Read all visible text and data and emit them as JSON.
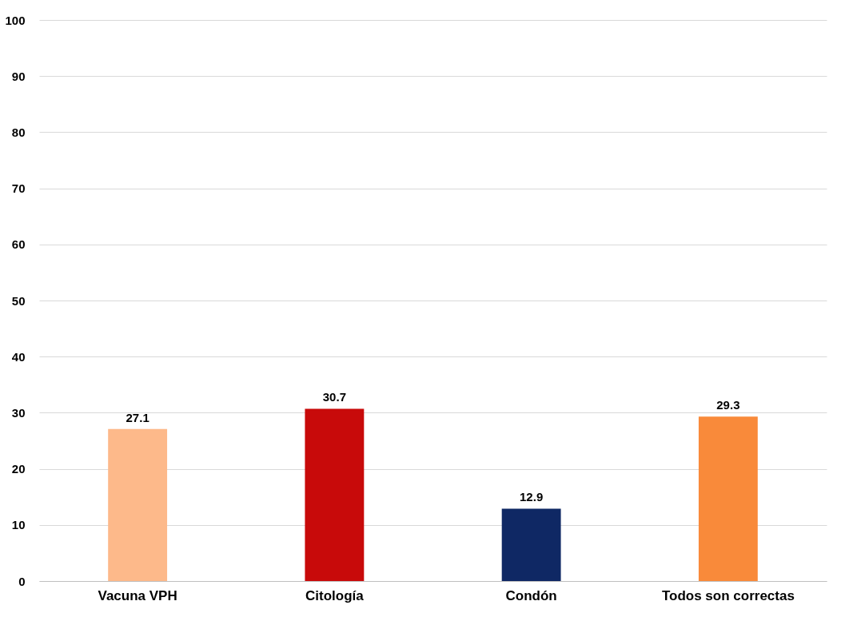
{
  "chart_data": {
    "type": "bar",
    "categories": [
      "Vacuna VPH",
      "Citología",
      "Condón",
      "Todos son correctas"
    ],
    "values": [
      27.1,
      30.7,
      12.9,
      29.3
    ],
    "colors": [
      "#fdb98a",
      "#c80a0a",
      "#0f2864",
      "#f98a3a"
    ],
    "ylim": [
      0,
      100
    ],
    "yticks": [
      0,
      10,
      20,
      30,
      40,
      50,
      60,
      70,
      80,
      90,
      100
    ],
    "grid": "y",
    "data_labels": true
  }
}
